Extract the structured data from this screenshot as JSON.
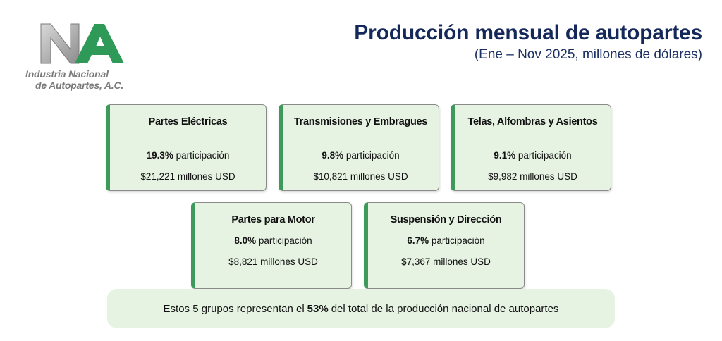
{
  "header": {
    "title": "Producción mensual de autopartes",
    "subtitle": "(Ene – Nov 2025, millones de dólares)"
  },
  "logo": {
    "org_line1": "Industria Nacional",
    "org_line2": "de Autopartes, A.C.",
    "colors": {
      "gray": "#a6a6a6",
      "green": "#2f9a57"
    }
  },
  "cards": [
    {
      "name": "Partes Eléctricas",
      "share_value": "19.3%",
      "share_label": "participación",
      "amount": "$21,221 millones USD"
    },
    {
      "name": "Transmisiones y Embragues",
      "share_value": "9.8%",
      "share_label": "participación",
      "amount": "$10,821 millones USD"
    },
    {
      "name": "Telas, Alfombras y Asientos",
      "share_value": "9.1%",
      "share_label": "participación",
      "amount": "$9,982 millones USD"
    },
    {
      "name": "Partes para Motor",
      "share_value": "8.0%",
      "share_label": "participación",
      "amount": "$8,821 millones USD"
    },
    {
      "name": "Suspensión y Dirección",
      "share_value": "6.7%",
      "share_label": "participación",
      "amount": "$7,367 millones USD"
    }
  ],
  "summary": {
    "text_before": "Estos 5 grupos representan el",
    "highlight": "53%",
    "text_after": "del total de la producción nacional de autopartes"
  },
  "colors": {
    "card_bg": "#e6f2e2",
    "accent_green": "#3d9a5a",
    "title_navy": "#14285a"
  }
}
